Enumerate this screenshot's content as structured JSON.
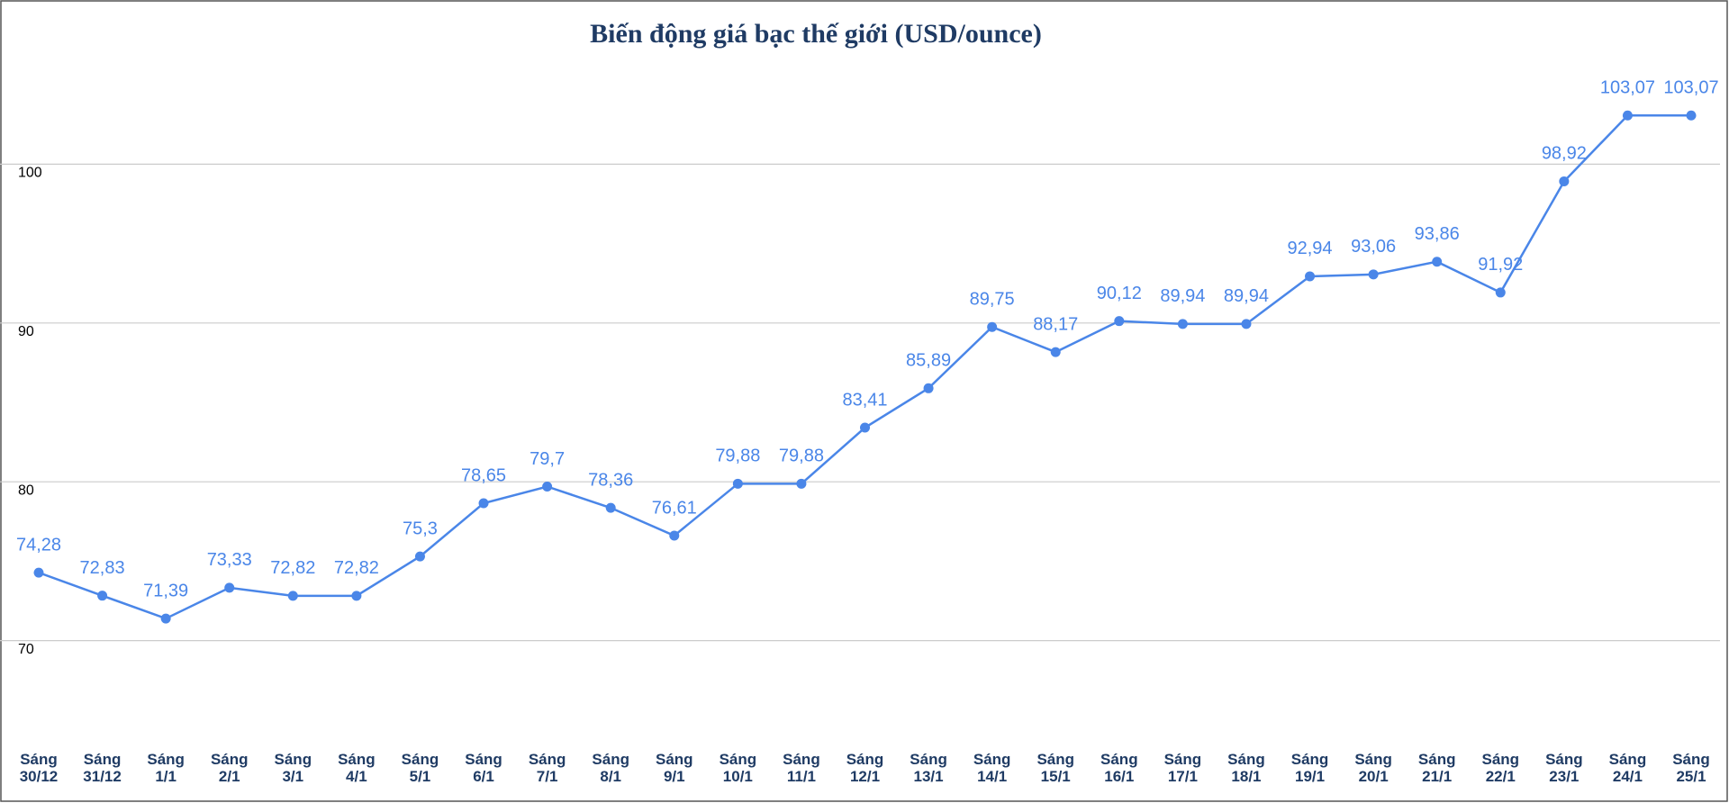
{
  "chart_data": {
    "type": "line",
    "title": "Biến động giá bạc thế giới (USD/ounce)",
    "categories": [
      "Sáng 30/12",
      "Sáng 31/12",
      "Sáng 1/1",
      "Sáng 2/1",
      "Sáng 3/1",
      "Sáng 4/1",
      "Sáng 5/1",
      "Sáng 6/1",
      "Sáng 7/1",
      "Sáng 8/1",
      "Sáng 9/1",
      "Sáng 10/1",
      "Sáng 11/1",
      "Sáng 12/1",
      "Sáng 13/1",
      "Sáng 14/1",
      "Sáng 15/1",
      "Sáng 16/1",
      "Sáng 17/1",
      "Sáng 18/1",
      "Sáng 19/1",
      "Sáng 20/1",
      "Sáng 21/1",
      "Sáng 22/1",
      "Sáng 23/1",
      "Sáng 24/1",
      "Sáng 25/1"
    ],
    "series": [
      {
        "color": "#4a86e8",
        "values": [
          74.28,
          72.83,
          71.39,
          73.33,
          72.82,
          72.82,
          75.3,
          78.65,
          79.7,
          78.36,
          76.61,
          79.88,
          79.88,
          83.41,
          85.89,
          89.75,
          88.17,
          90.12,
          89.94,
          89.94,
          92.94,
          93.06,
          93.86,
          91.92,
          98.92,
          103.07,
          103.07
        ],
        "value_labels": [
          "74,28",
          "72,83",
          "71,39",
          "73,33",
          "72,82",
          "72,82",
          "75,3",
          "78,65",
          "79,7",
          "78,36",
          "76,61",
          "79,88",
          "79,88",
          "83,41",
          "85,89",
          "89,75",
          "88,17",
          "90,12",
          "89,94",
          "89,94",
          "92,94",
          "93,06",
          "93,86",
          "91,92",
          "98,92",
          "103,07",
          "103,07"
        ]
      }
    ],
    "ylim": [
      60,
      110
    ],
    "yticks": [
      70,
      80,
      90,
      100
    ],
    "grid": true
  }
}
